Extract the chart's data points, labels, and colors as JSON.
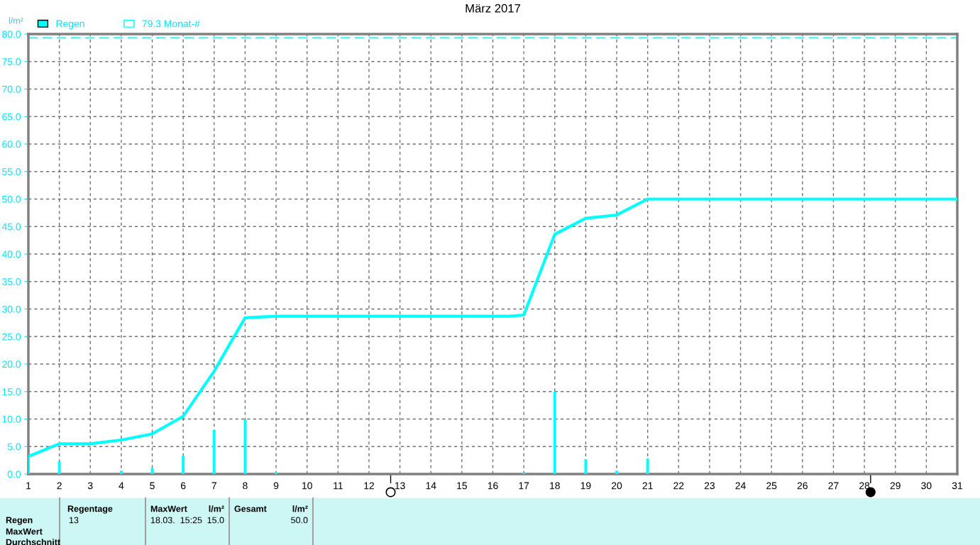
{
  "chart_data": {
    "type": "bar",
    "title": "März 2017",
    "ylabel": "l/m²",
    "series": [
      {
        "name": "Regen",
        "color": "#00ffff",
        "x": [
          1,
          2,
          4,
          5,
          6,
          7,
          8,
          9,
          17,
          18,
          19,
          20,
          21
        ],
        "values": [
          3.2,
          2.3,
          0.6,
          1.1,
          3.3,
          8.0,
          9.9,
          0.3,
          0.2,
          15.0,
          2.7,
          0.6,
          2.8
        ]
      },
      {
        "type": "line",
        "color": "#00ffff",
        "x": [
          1,
          2,
          3,
          4,
          5,
          5.5,
          6,
          6.5,
          7,
          7.5,
          8,
          8.3,
          9,
          16.5,
          17,
          18,
          19,
          20,
          21,
          31
        ],
        "values": [
          3.2,
          5.5,
          5.5,
          6.2,
          7.3,
          8.9,
          10.5,
          14.6,
          18.7,
          23.6,
          28.4,
          28.5,
          28.7,
          28.7,
          28.9,
          43.6,
          46.5,
          47.1,
          50.0,
          50.0
        ]
      }
    ],
    "ref_lines": [
      {
        "axis": "y",
        "value": 79.3,
        "label": "79.3 Monat-#",
        "color": "#00ffff",
        "line_style": "dashed"
      }
    ],
    "xlim": [
      1,
      31
    ],
    "xticks": [
      1,
      2,
      3,
      4,
      5,
      6,
      7,
      8,
      9,
      10,
      11,
      12,
      13,
      14,
      15,
      16,
      17,
      18,
      19,
      20,
      21,
      22,
      23,
      24,
      25,
      26,
      27,
      28,
      29,
      30,
      31
    ],
    "ylim": [
      0,
      80
    ],
    "yticks": [
      {
        "value": 0,
        "label": "0.0"
      },
      {
        "value": 5,
        "label": "5.0"
      },
      {
        "value": 10,
        "label": "10.0"
      },
      {
        "value": 15,
        "label": "15.0"
      },
      {
        "value": 20,
        "label": "20.0"
      },
      {
        "value": 25,
        "label": "25.0"
      },
      {
        "value": 30,
        "label": "30.0"
      },
      {
        "value": 35,
        "label": "35.0"
      },
      {
        "value": 40,
        "label": "40.0"
      },
      {
        "value": 45,
        "label": "45.0"
      },
      {
        "value": 50,
        "label": "50.0"
      },
      {
        "value": 55,
        "label": "55.0"
      },
      {
        "value": 60,
        "label": "60.0"
      },
      {
        "value": 65,
        "label": "65.0"
      },
      {
        "value": 70,
        "label": "70.0"
      },
      {
        "value": 75,
        "label": "75.0"
      },
      {
        "value": 80,
        "label": "80.0"
      }
    ],
    "grid": true,
    "legend": "top left",
    "annotations": [
      "Regen",
      "MaxWert",
      "Durchschnitt",
      "Regentage",
      "13",
      "MaxWert",
      "l/m²",
      "18.03.  15:25",
      "15.0",
      "Gesamt",
      "l/m²",
      "50.0"
    ]
  }
}
